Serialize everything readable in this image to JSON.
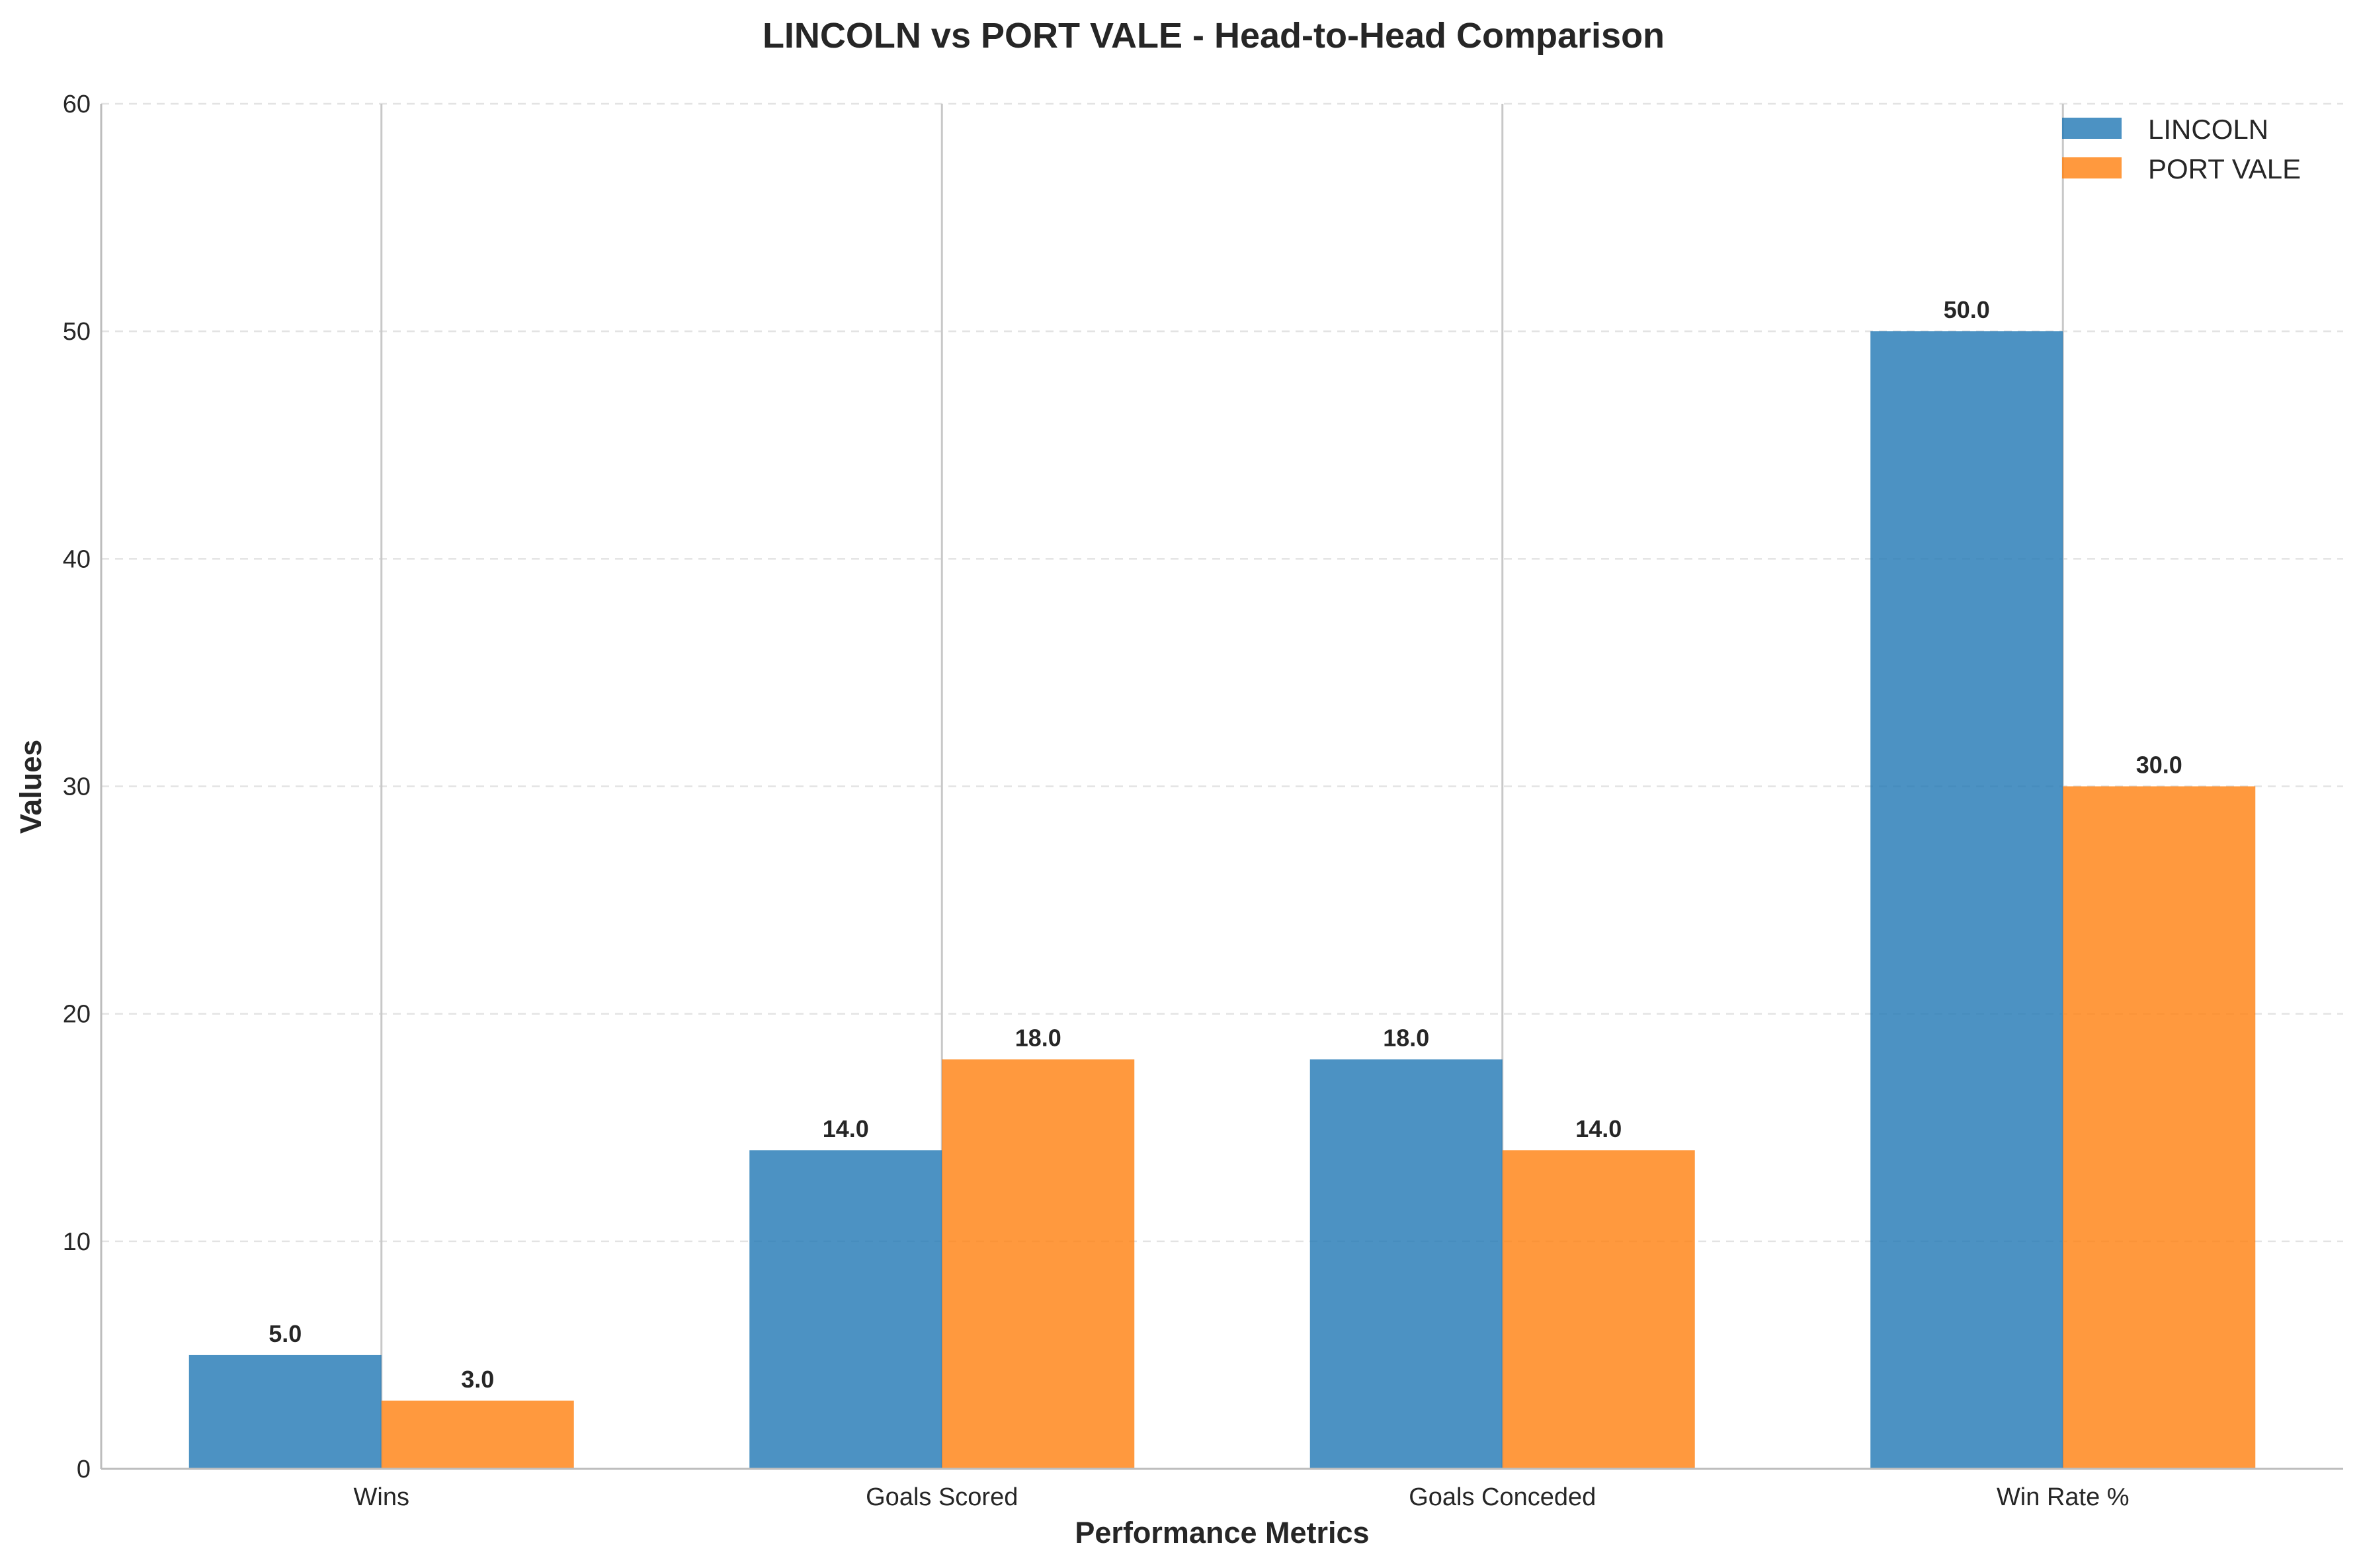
{
  "chart_data": {
    "type": "bar",
    "title": "LINCOLN vs PORT VALE - Head-to-Head Comparison",
    "xlabel": "Performance Metrics",
    "ylabel": "Values",
    "categories": [
      "Wins",
      "Goals Scored",
      "Goals Conceded",
      "Win Rate %"
    ],
    "series": [
      {
        "name": "LINCOLN",
        "color": "#1f77b4",
        "values": [
          5.0,
          14.0,
          18.0,
          50.0
        ],
        "labels": [
          "5.0",
          "14.0",
          "18.0",
          "50.0"
        ]
      },
      {
        "name": "PORT VALE",
        "color": "#ff7f0e",
        "values": [
          3.0,
          18.0,
          14.0,
          30.0
        ],
        "labels": [
          "3.0",
          "18.0",
          "14.0",
          "30.0"
        ]
      }
    ],
    "ylim": [
      0,
      60
    ],
    "yticks": [
      0,
      10,
      20,
      30,
      40,
      50,
      60
    ],
    "ytick_labels": [
      "0",
      "10",
      "20",
      "30",
      "40",
      "50",
      "60"
    ],
    "grid": "y-dashed",
    "legend_position": "top-right"
  }
}
